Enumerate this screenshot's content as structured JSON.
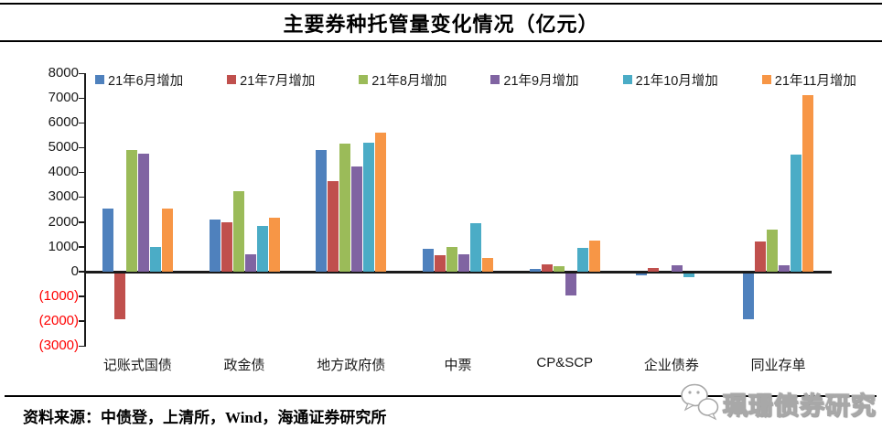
{
  "header": {
    "title": "主要券种托管量变化情况（亿元）"
  },
  "footer": {
    "source": "资料来源：中债登，上清所，Wind，海通证券研究所",
    "watermark": {
      "icon": "wechat-chat-bubbles-icon",
      "label": "珮珊债券研究"
    }
  },
  "chart_data": {
    "type": "bar",
    "title": "主要券种托管量变化情况（亿元）",
    "unit": "亿元",
    "categories": [
      "记账式国债",
      "政金债",
      "地方政府债",
      "中票",
      "CP&SCP",
      "企业债券",
      "同业存单"
    ],
    "series": [
      {
        "name": "21年6月增加",
        "color": "#4F81BD",
        "values": [
          2550,
          2100,
          4900,
          900,
          100,
          -100,
          -1850
        ]
      },
      {
        "name": "21年7月增加",
        "color": "#C0504D",
        "values": [
          -1850,
          2000,
          3650,
          650,
          300,
          150,
          1200
        ]
      },
      {
        "name": "21年8月增加",
        "color": "#9BBB59",
        "values": [
          4900,
          3250,
          5150,
          1000,
          200,
          0,
          1700
        ]
      },
      {
        "name": "21年9月增加",
        "color": "#8064A2",
        "values": [
          4750,
          700,
          4250,
          700,
          -900,
          250,
          250
        ]
      },
      {
        "name": "21年10月增加",
        "color": "#4BACC6",
        "values": [
          1000,
          1850,
          5200,
          1950,
          950,
          -150,
          4700
        ]
      },
      {
        "name": "21年11月增加",
        "color": "#F79646",
        "values": [
          2550,
          2150,
          5600,
          550,
          1250,
          0,
          7100
        ]
      }
    ],
    "y_ticks": [
      8000,
      7000,
      6000,
      5000,
      4000,
      3000,
      2000,
      1000,
      0,
      -1000,
      -2000,
      -3000
    ],
    "ylim": [
      -3000,
      8000
    ],
    "negative_label_style": "red-parentheses",
    "negative_label_color": "#FF0000",
    "legend_position": "top",
    "grid": false
  }
}
